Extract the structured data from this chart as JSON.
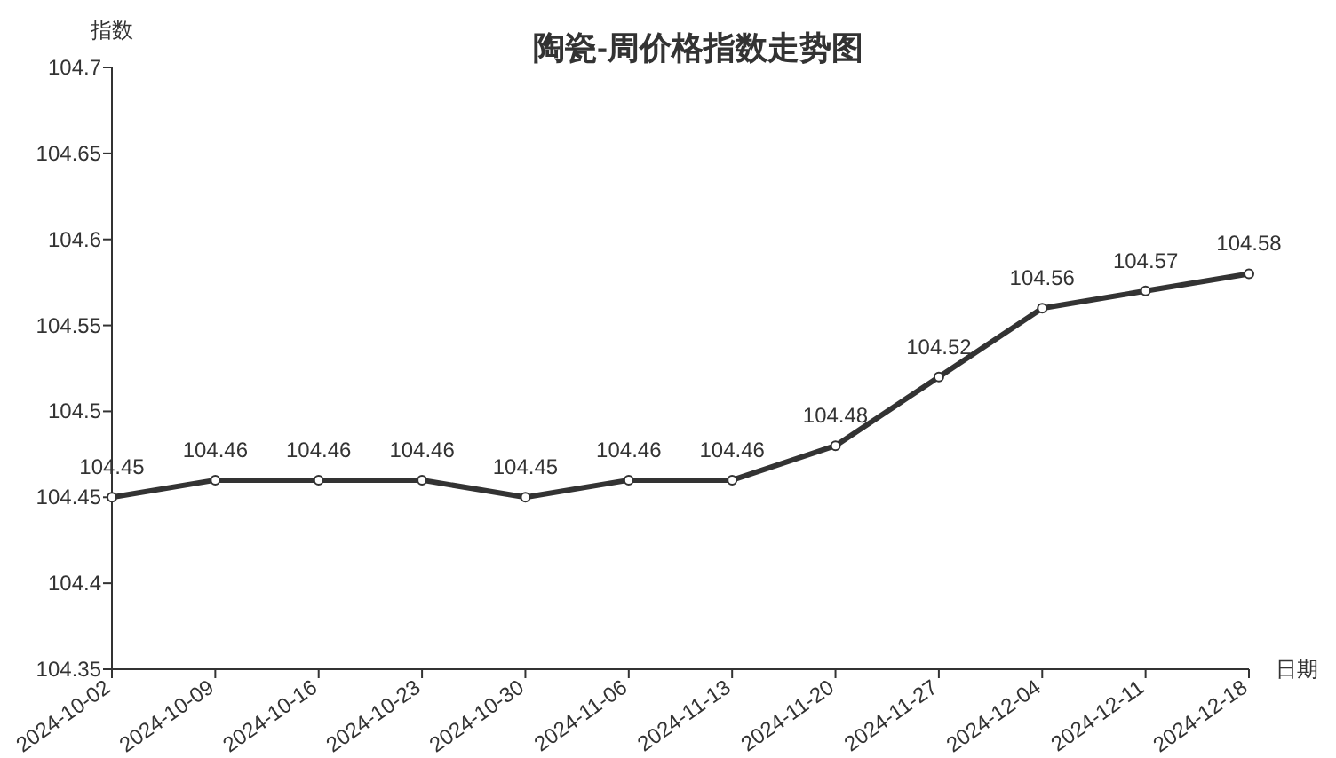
{
  "chart_data": {
    "type": "line",
    "title": "陶瓷-周价格指数走势图",
    "xlabel": "日期",
    "ylabel": "指数",
    "categories": [
      "2024-10-02",
      "2024-10-09",
      "2024-10-16",
      "2024-10-23",
      "2024-10-30",
      "2024-11-06",
      "2024-11-13",
      "2024-11-20",
      "2024-11-27",
      "2024-12-04",
      "2024-12-11",
      "2024-12-18"
    ],
    "series": [
      {
        "color": "#333333",
        "values": [
          104.45,
          104.46,
          104.46,
          104.46,
          104.45,
          104.46,
          104.46,
          104.48,
          104.52,
          104.56,
          104.57,
          104.58
        ]
      }
    ],
    "ylim": [
      104.35,
      104.7
    ],
    "yticks": [
      104.35,
      104.4,
      104.45,
      104.5,
      104.55,
      104.6,
      104.65,
      104.7
    ],
    "data_labels": true,
    "marker": "circle",
    "line_style": "solid"
  }
}
